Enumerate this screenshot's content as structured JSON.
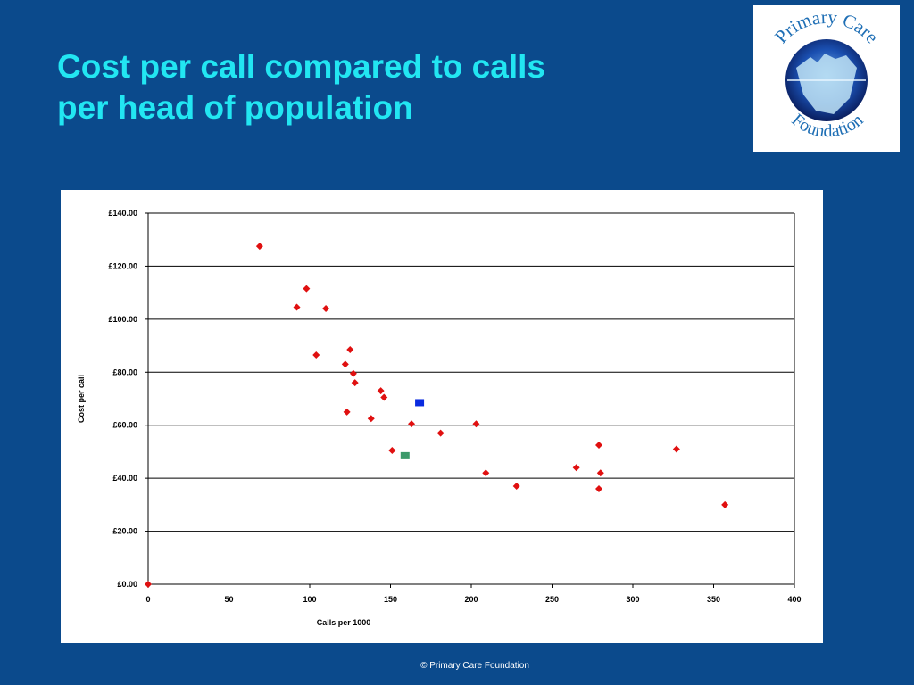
{
  "slide": {
    "title_lines": [
      "Cost per call compared to calls",
      "per head of population"
    ],
    "footer": "© Primary Care Foundation",
    "logo": {
      "top_text": "Primary Care",
      "bottom_text": "Foundation",
      "ring_color": "#1F6FB5",
      "globe_color": "#1A3E9A"
    },
    "background_color": "#0B4A8C",
    "title_color": "#22E6F2"
  },
  "chart_data": {
    "type": "scatter",
    "xlabel": "Calls per 1000",
    "ylabel": "Cost per call",
    "xlim": [
      0,
      400
    ],
    "ylim": [
      0,
      140
    ],
    "x_ticks": [
      "0",
      "50",
      "100",
      "150",
      "200",
      "250",
      "300",
      "350",
      "400"
    ],
    "y_ticks": [
      "£0.00",
      "£20.00",
      "£40.00",
      "£60.00",
      "£80.00",
      "£100.00",
      "£120.00",
      "£140.00"
    ],
    "grid": "horizontal",
    "series": [
      {
        "color": "#E01010",
        "marker": "diamond",
        "points": [
          [
            0,
            0
          ],
          [
            69,
            127.5
          ],
          [
            92,
            104.5
          ],
          [
            98,
            111.5
          ],
          [
            104,
            86.5
          ],
          [
            110,
            104
          ],
          [
            122,
            83
          ],
          [
            123,
            65
          ],
          [
            125,
            88.5
          ],
          [
            127,
            79.5
          ],
          [
            128,
            76
          ],
          [
            138,
            62.5
          ],
          [
            144,
            73
          ],
          [
            146,
            70.5
          ],
          [
            151,
            50.5
          ],
          [
            163,
            60.5
          ],
          [
            181,
            57
          ],
          [
            203,
            60.5
          ],
          [
            209,
            42
          ],
          [
            228,
            37
          ],
          [
            265,
            44
          ],
          [
            279,
            52.5
          ],
          [
            279,
            36
          ],
          [
            280,
            42
          ],
          [
            327,
            51
          ],
          [
            357,
            30
          ]
        ]
      },
      {
        "color": "#0A2BE0",
        "marker": "square",
        "points": [
          [
            168,
            68.5
          ]
        ]
      },
      {
        "color": "#3C9A6A",
        "marker": "square",
        "points": [
          [
            159,
            48.5
          ]
        ]
      }
    ]
  }
}
